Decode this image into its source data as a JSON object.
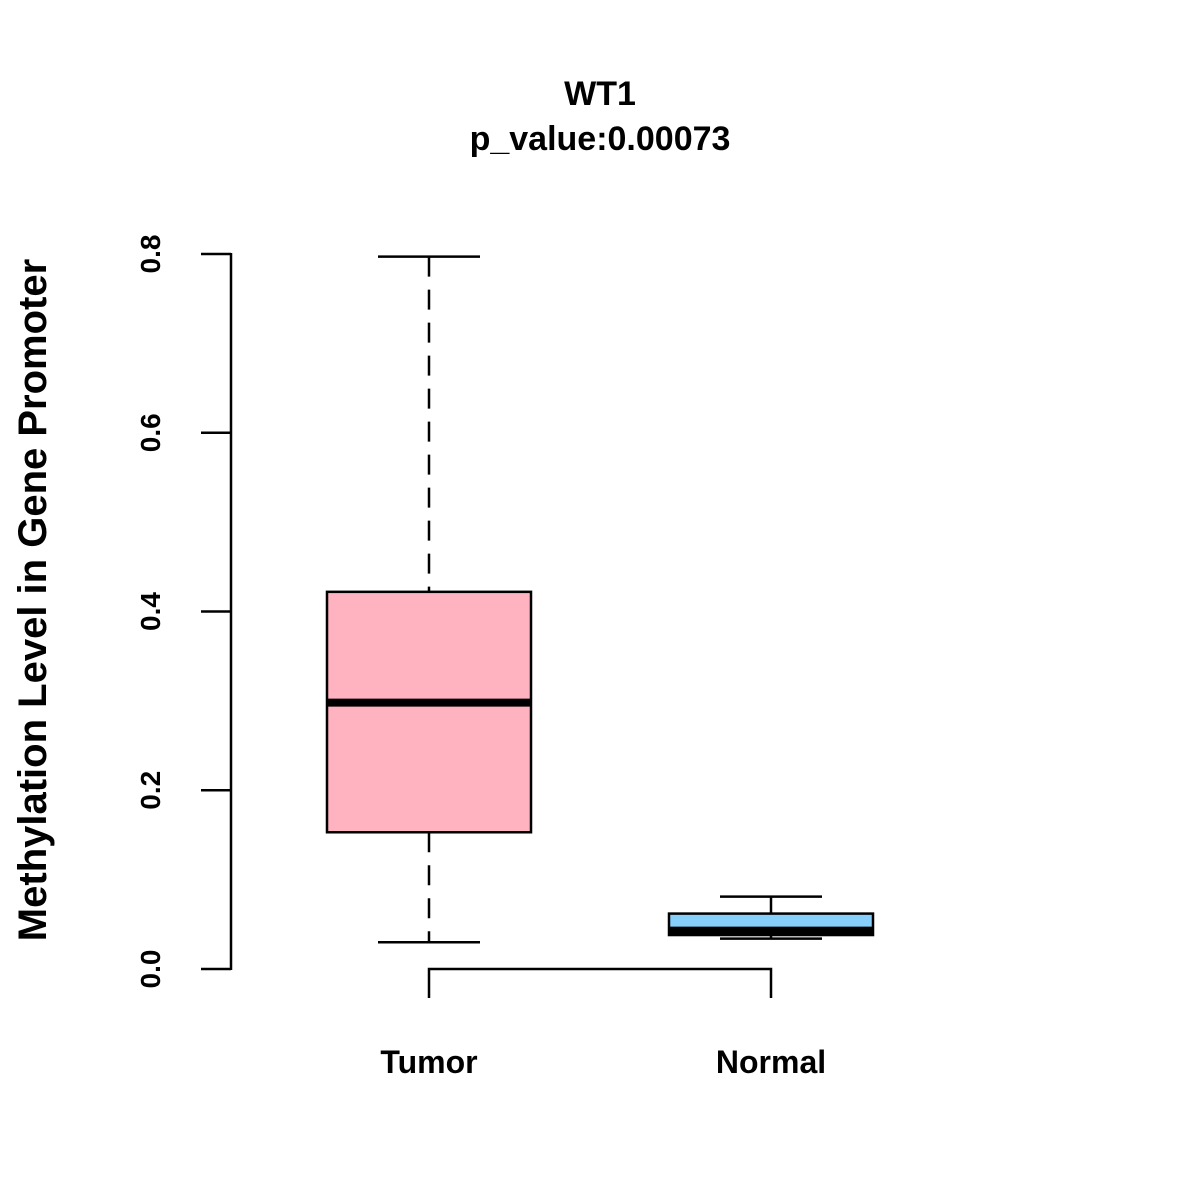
{
  "chart_data": {
    "type": "box",
    "title": "WT1",
    "subtitle": "p_value:0.00073",
    "xlabel": "",
    "ylabel": "Methylation Level in Gene Promoter",
    "ylim": [
      0,
      0.8
    ],
    "yticks": [
      {
        "value": 0.0,
        "label": "0.0"
      },
      {
        "value": 0.2,
        "label": "0.2"
      },
      {
        "value": 0.4,
        "label": "0.4"
      },
      {
        "value": 0.6,
        "label": "0.6"
      },
      {
        "value": 0.8,
        "label": "0.8"
      }
    ],
    "categories": [
      "Tumor",
      "Normal"
    ],
    "boxes": [
      {
        "name": "Tumor",
        "min": 0.03,
        "q1": 0.153,
        "median": 0.298,
        "q3": 0.422,
        "max": 0.797,
        "color": "#FFB3C1"
      },
      {
        "name": "Normal",
        "min": 0.034,
        "q1": 0.038,
        "median": 0.043,
        "q3": 0.062,
        "max": 0.081,
        "color": "#87CEFA"
      }
    ],
    "comparison_bracket": {
      "from": "Tumor",
      "to": "Normal"
    }
  }
}
